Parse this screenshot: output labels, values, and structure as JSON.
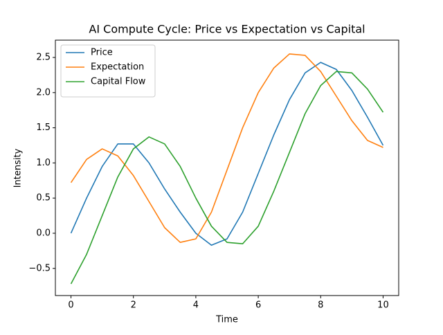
{
  "chart_data": {
    "type": "line",
    "title": "AI Compute Cycle: Price vs Expectation vs Capital",
    "x_label": "Time",
    "y_label": "Intensity",
    "x": [
      0,
      0.5,
      1,
      1.5,
      2,
      2.5,
      3,
      3.5,
      4,
      4.5,
      5,
      5.5,
      6,
      6.5,
      7,
      7.5,
      8,
      8.5,
      9,
      9.5,
      10
    ],
    "series": [
      {
        "name": "Price",
        "color": "#1f77b4",
        "values": [
          0,
          0.5,
          0.95,
          1.27,
          1.27,
          1.0,
          0.63,
          0.3,
          0.0,
          -0.17,
          -0.08,
          0.3,
          0.85,
          1.4,
          1.9,
          2.28,
          2.43,
          2.33,
          2.03,
          1.65,
          1.25
        ]
      },
      {
        "name": "Expectation",
        "color": "#ff7f0e",
        "values": [
          0.72,
          1.05,
          1.2,
          1.1,
          0.82,
          0.45,
          0.08,
          -0.13,
          -0.08,
          0.3,
          0.9,
          1.5,
          2.0,
          2.35,
          2.55,
          2.53,
          2.3,
          1.95,
          1.6,
          1.32,
          1.22
        ]
      },
      {
        "name": "Capital Flow",
        "color": "#2ca02c",
        "values": [
          -0.72,
          -0.3,
          0.25,
          0.8,
          1.2,
          1.37,
          1.27,
          0.95,
          0.5,
          0.1,
          -0.13,
          -0.15,
          0.1,
          0.6,
          1.15,
          1.7,
          2.1,
          2.3,
          2.28,
          2.05,
          1.72
        ]
      }
    ],
    "xlim": [
      -0.5,
      10.5
    ],
    "xticks": [
      0,
      2,
      4,
      6,
      8,
      10
    ],
    "ylim": [
      -0.886,
      2.746
    ],
    "yticks": [
      {
        "value": -0.5,
        "label": "−0.5"
      },
      {
        "value": 0,
        "label": "0.0"
      },
      0.5,
      {
        "value": 1,
        "label": "1.0"
      },
      1.5,
      {
        "value": 2,
        "label": "2.0"
      },
      2.5
    ],
    "legend": "upper left",
    "grid": false
  }
}
